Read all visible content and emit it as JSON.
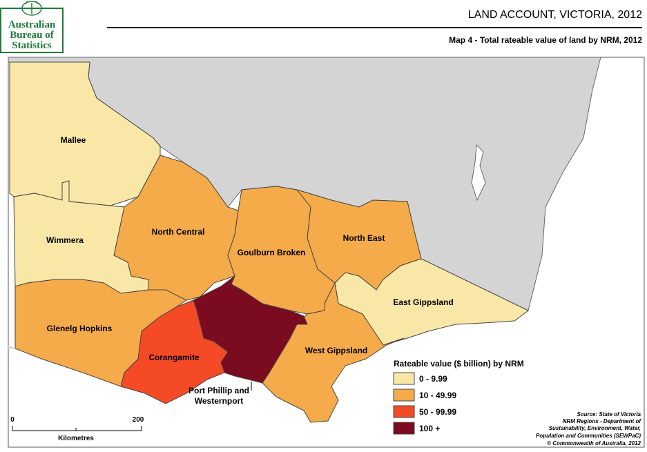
{
  "header": {
    "logo": [
      "Australian",
      "Bureau of",
      "Statistics"
    ],
    "title": "LAND ACCOUNT, VICTORIA, 2012",
    "subtitle": "Map 4 - Total rateable value of land by NRM, 2012"
  },
  "map": {
    "land_color": "#d4d4d4",
    "regions": [
      {
        "label": [
          "Mallee"
        ],
        "color": "#f9e7a8"
      },
      {
        "label": [
          "Wimmera"
        ],
        "color": "#f9e7a8"
      },
      {
        "label": [
          "North Central"
        ],
        "color": "#f5ab4a"
      },
      {
        "label": [
          "Goulburn Broken"
        ],
        "color": "#f5ab4a"
      },
      {
        "label": [
          "North East"
        ],
        "color": "#f5ab4a"
      },
      {
        "label": [
          "East Gippsland"
        ],
        "color": "#f9e7a8"
      },
      {
        "label": [
          "West Gippsland"
        ],
        "color": "#f5ab4a"
      },
      {
        "label": [
          "Port Phillip and",
          "Westernport"
        ],
        "color": "#7b0b1f"
      },
      {
        "label": [
          "Corangamite"
        ],
        "color": "#f44a26"
      },
      {
        "label": [
          "Glenelg Hopkins"
        ],
        "color": "#f5ab4a"
      }
    ],
    "legend": {
      "title": "Rateable value ($ billion) by NRM",
      "items": [
        {
          "label": "0 - 9.99",
          "color": "#f9e7a8"
        },
        {
          "label": "10 - 49.99",
          "color": "#f5ab4a"
        },
        {
          "label": "50 - 99.99",
          "color": "#f44a26"
        },
        {
          "label": "100 +",
          "color": "#7b0b1f"
        }
      ]
    },
    "scale": {
      "ticks": [
        "0",
        "200"
      ],
      "unit": "Kilometres"
    },
    "source": [
      "Source: State of Victoria",
      "NRM Regions - Department of",
      "Sustainability, Environment, Water,",
      "Population and Communities (SEWPaC)",
      "© Commonwealth of Australia, 2012"
    ]
  }
}
